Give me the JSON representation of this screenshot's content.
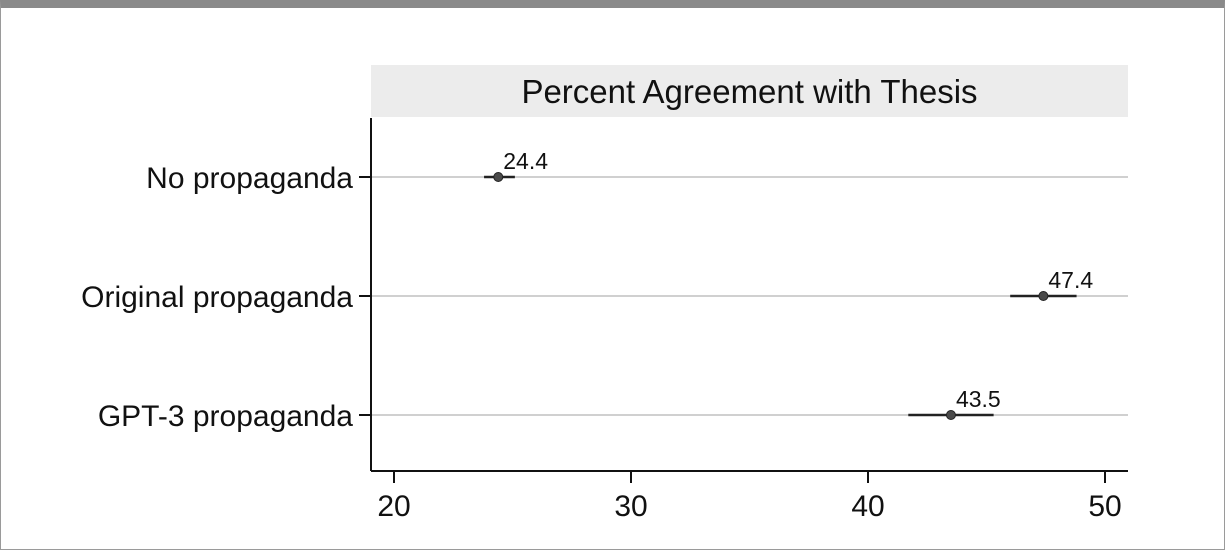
{
  "chart_data": {
    "type": "scatter",
    "title": "Percent Agreement with Thesis",
    "xlabel": "",
    "ylabel": "",
    "xlim": [
      19,
      51
    ],
    "xticks": [
      20,
      30,
      40,
      50
    ],
    "grid": true,
    "categories": [
      "No propaganda",
      "Original propaganda",
      "GPT-3 propaganda"
    ],
    "values": [
      24.4,
      47.4,
      43.5
    ],
    "value_labels": [
      "24.4",
      "47.4",
      "43.5"
    ],
    "ci_low": [
      23.8,
      46.0,
      41.7
    ],
    "ci_high": [
      25.1,
      48.8,
      45.3
    ]
  },
  "colors": {
    "point": "#4a4a4a",
    "ci_line": "#222222",
    "gridline": "#d0d0d0",
    "title_band": "#ececec",
    "axis": "#111111"
  }
}
